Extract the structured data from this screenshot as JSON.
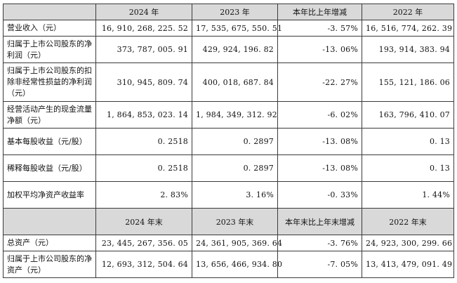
{
  "header1": [
    "",
    "2024 年",
    "2023 年",
    "本年比上年增减",
    "2022 年"
  ],
  "rows1": [
    {
      "label": "营业收入（元）",
      "values": [
        "16, 910, 268, 225. 52",
        "17, 535, 675, 550. 51",
        "-3. 57%",
        "16, 516, 774, 262. 39"
      ]
    },
    {
      "label": "归属于上市公司股东的净利润（元）",
      "values": [
        "373, 787, 005. 91",
        "429, 924, 196. 82",
        "-13. 06%",
        "193, 914, 383. 94"
      ]
    },
    {
      "label": "归属于上市公司股东的扣除非经常性损益的净利润（元）",
      "values": [
        "310, 945, 809. 74",
        "400, 018, 687. 84",
        "-22. 27%",
        "155, 121, 186. 06"
      ]
    },
    {
      "label": "经营活动产生的现金流量净额（元）",
      "values": [
        "1, 864, 853, 023. 14",
        "1, 984, 349, 312. 92",
        "-6. 02%",
        "163, 796, 410. 07"
      ]
    },
    {
      "label": "基本每股收益（元/股）",
      "values": [
        "0. 2518",
        "0. 2897",
        "-13. 08%",
        "0. 13"
      ]
    },
    {
      "label": "稀释每股收益（元/股）",
      "values": [
        "0. 2518",
        "0. 2897",
        "-13. 08%",
        "0. 13"
      ]
    },
    {
      "label": "加权平均净资产收益率",
      "values": [
        "2. 83%",
        "3. 16%",
        "-0. 33%",
        "1. 44%"
      ]
    }
  ],
  "header2": [
    "",
    "2024 年末",
    "2023 年末",
    "本年末比上年末增减",
    "2022 年末"
  ],
  "rows2": [
    {
      "label": "总资产（元）",
      "values": [
        "23, 445, 267, 356. 05",
        "24, 361, 905, 369. 64",
        "-3. 76%",
        "24, 923, 300, 299. 66"
      ]
    },
    {
      "label": "归属于上市公司股东的净资产（元）",
      "values": [
        "12, 693, 312, 504. 64",
        "13, 656, 466, 934. 80",
        "-7. 05%",
        "13, 413, 479, 091. 49"
      ]
    }
  ]
}
